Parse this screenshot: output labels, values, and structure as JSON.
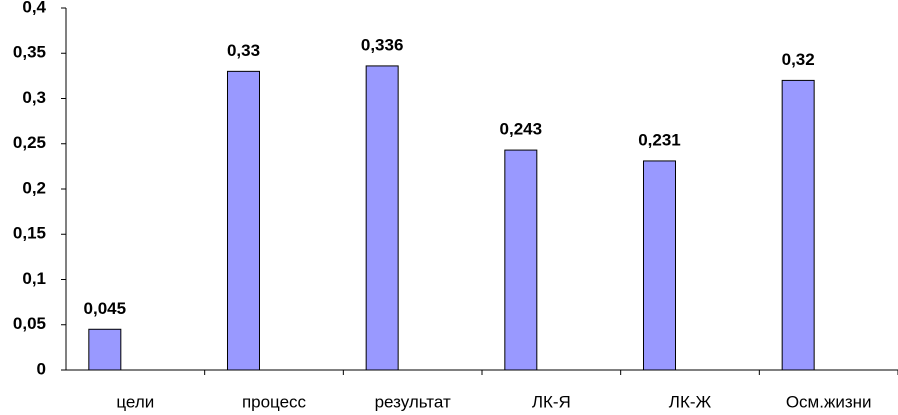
{
  "chart_data": {
    "type": "bar",
    "categories": [
      "цели",
      "процесс",
      "результат",
      "ЛК-Я",
      "ЛК-Ж",
      "Осм.жизни"
    ],
    "values": [
      0.045,
      0.33,
      0.336,
      0.243,
      0.231,
      0.32
    ],
    "value_labels": [
      "0,045",
      "0,33",
      "0,336",
      "0,243",
      "0,231",
      "0,32"
    ],
    "color": "#9999ff",
    "ylim": [
      0,
      0.4
    ],
    "yticks": [
      0,
      {
        "value": 0.05,
        "label": "0,05"
      },
      {
        "value": 0.1,
        "label": "0,1"
      },
      {
        "value": 0.15,
        "label": "0,15"
      },
      {
        "value": 0.2,
        "label": "0,2"
      },
      {
        "value": 0.25,
        "label": "0,25"
      },
      {
        "value": 0.3,
        "label": "0,3"
      },
      {
        "value": 0.35,
        "label": "0,35"
      },
      {
        "value": 0.4,
        "label": "0,4"
      }
    ],
    "grid": false
  }
}
